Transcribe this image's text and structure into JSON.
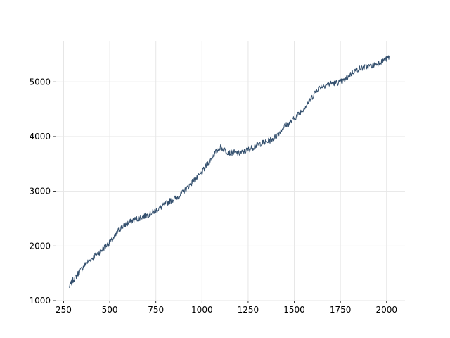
{
  "chart_data": {
    "type": "line",
    "title": "",
    "xlabel": "",
    "ylabel": "",
    "xlim": [
      210,
      2100
    ],
    "ylim": [
      1000,
      5750
    ],
    "xticks": [
      250,
      500,
      750,
      1000,
      1250,
      1500,
      1750,
      2000
    ],
    "yticks": [
      1000,
      2000,
      3000,
      4000,
      5000
    ],
    "xtick_labels": [
      "250",
      "500",
      "750",
      "1000",
      "1250",
      "1500",
      "1750",
      "2000"
    ],
    "ytick_labels": [
      "1000",
      "2000",
      "3000",
      "4000",
      "5000"
    ],
    "grid": true,
    "legend": "none",
    "line_color": "#34506e",
    "grid_color": "#e6e6e6",
    "series": [
      {
        "x": [
          280,
          300,
          325,
          350,
          375,
          400,
          425,
          450,
          475,
          500,
          525,
          550,
          575,
          600,
          625,
          650,
          675,
          700,
          725,
          750,
          775,
          800,
          825,
          850,
          875,
          900,
          925,
          950,
          975,
          1000,
          1025,
          1050,
          1075,
          1100,
          1125,
          1150,
          1175,
          1200,
          1225,
          1250,
          1275,
          1300,
          1325,
          1350,
          1375,
          1400,
          1425,
          1450,
          1475,
          1500,
          1525,
          1550,
          1575,
          1600,
          1625,
          1650,
          1675,
          1700,
          1725,
          1750,
          1775,
          1800,
          1825,
          1850,
          1875,
          1900,
          1925,
          1950,
          1975,
          2000,
          2015
        ],
        "y": [
          1250,
          1370,
          1480,
          1590,
          1690,
          1760,
          1840,
          1900,
          1990,
          2060,
          2150,
          2300,
          2370,
          2420,
          2470,
          2500,
          2530,
          2560,
          2600,
          2650,
          2700,
          2760,
          2820,
          2860,
          2910,
          2990,
          3080,
          3180,
          3250,
          3340,
          3480,
          3600,
          3720,
          3800,
          3750,
          3700,
          3710,
          3690,
          3720,
          3760,
          3800,
          3850,
          3880,
          3900,
          3940,
          4000,
          4100,
          4200,
          4250,
          4330,
          4420,
          4510,
          4620,
          4740,
          4870,
          4920,
          4950,
          4970,
          4980,
          5000,
          5030,
          5130,
          5200,
          5240,
          5260,
          5280,
          5300,
          5330,
          5380,
          5420,
          5450
        ]
      }
    ]
  }
}
